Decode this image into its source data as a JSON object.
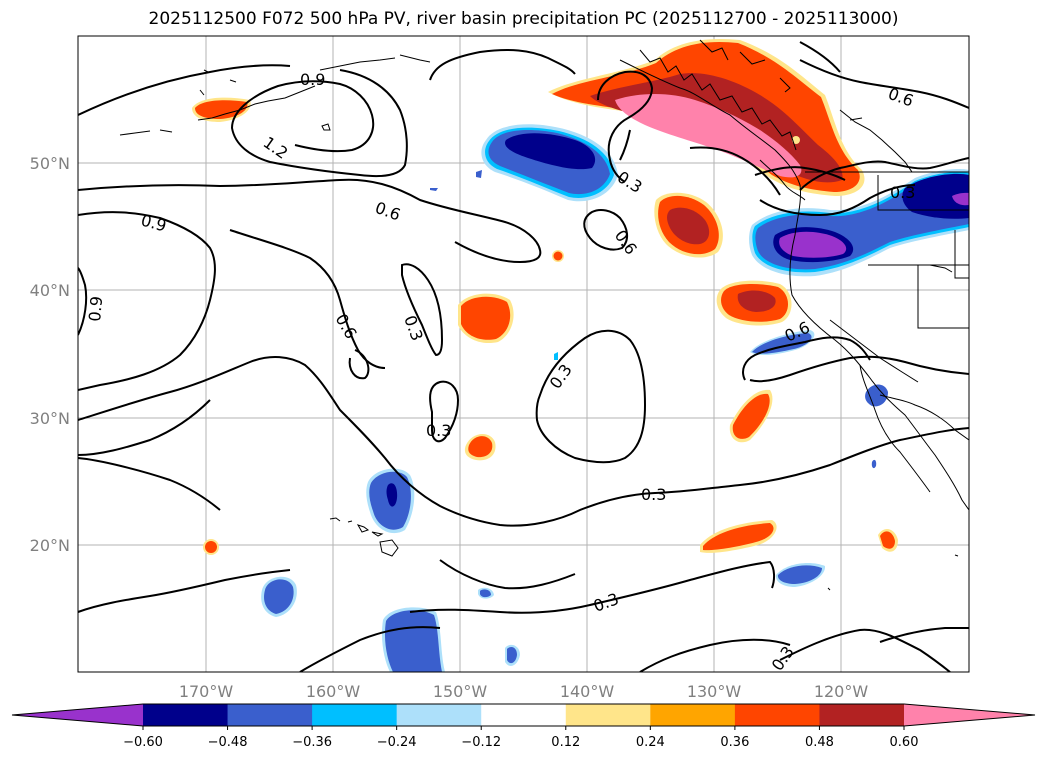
{
  "title": "2025112500 F072 500 hPa PV, river basin precipitation PC (2025112700 - 2025113000)",
  "lon_ticks": [
    "170°W",
    "160°W",
    "150°W",
    "140°W",
    "130°W",
    "120°W"
  ],
  "lat_ticks": [
    "50°N",
    "40°N",
    "30°N",
    "20°N"
  ],
  "contour_labels": [
    "0.9",
    "1.2",
    "0.6",
    "0.3",
    "0.6",
    "0.9",
    "0.9",
    "0.6",
    "0.3",
    "0.3",
    "0.3",
    "0.3",
    "0.3",
    "0.3",
    "0.6",
    "0.6",
    "0.3"
  ],
  "colorbar": {
    "colors": [
      "#9932CC",
      "#00008B",
      "#3A5FCD",
      "#00BFFF",
      "#ADE0FA",
      "#FFFFFF",
      "#FFE58A",
      "#FFA500",
      "#FF4500",
      "#B22222",
      "#FF82AB"
    ],
    "labels": [
      "−0.60",
      "−0.48",
      "−0.36",
      "−0.24",
      "−0.12",
      "0.12",
      "0.24",
      "0.36",
      "0.48",
      "0.60"
    ]
  }
}
